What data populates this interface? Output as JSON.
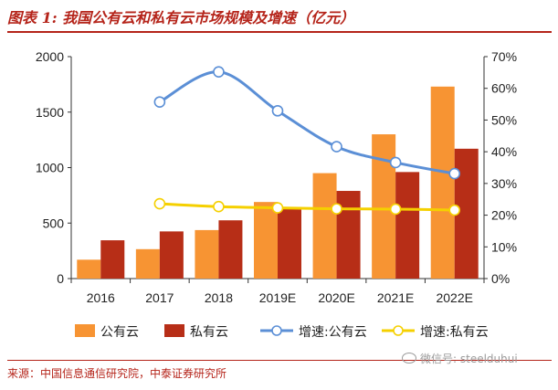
{
  "header": {
    "title": "图表 1:  我国公有云和私有云市场规模及增速（亿元）"
  },
  "footer": {
    "source": "来源：中国信息通信研究院，中泰证券研究所",
    "watermark": "微信号: steelduhui"
  },
  "colors": {
    "public_bar": "#f79433",
    "private_bar": "#b72e17",
    "public_growth": "#5b8fd6",
    "private_growth": "#f5d000",
    "accent": "#b5241a"
  },
  "chart_data": {
    "type": "bar",
    "categories": [
      "2016",
      "2017",
      "2018",
      "2019E",
      "2020E",
      "2021E",
      "2022E"
    ],
    "series": [
      {
        "name": "公有云",
        "type": "bar",
        "axis": "left",
        "values": [
          170,
          265,
          437,
          690,
          950,
          1300,
          1730
        ]
      },
      {
        "name": "私有云",
        "type": "bar",
        "axis": "left",
        "values": [
          345,
          425,
          525,
          645,
          790,
          960,
          1170
        ]
      },
      {
        "name": "增速:公有云",
        "type": "line",
        "axis": "right",
        "values": [
          null,
          55.7,
          65.2,
          52.9,
          41.6,
          36.6,
          33.1
        ]
      },
      {
        "name": "增速:私有云",
        "type": "line",
        "axis": "right",
        "values": [
          null,
          23.6,
          22.7,
          22.3,
          22.0,
          21.9,
          21.6
        ]
      }
    ],
    "ylim": [
      0,
      2000
    ],
    "yticks": [
      0,
      500,
      1000,
      1500,
      2000
    ],
    "y2lim": [
      0,
      70
    ],
    "y2ticks": [
      "0%",
      "10%",
      "20%",
      "30%",
      "40%",
      "50%",
      "60%",
      "70%"
    ],
    "xlabel": "",
    "ylabel": "",
    "grid": false,
    "legend_position": "bottom"
  }
}
